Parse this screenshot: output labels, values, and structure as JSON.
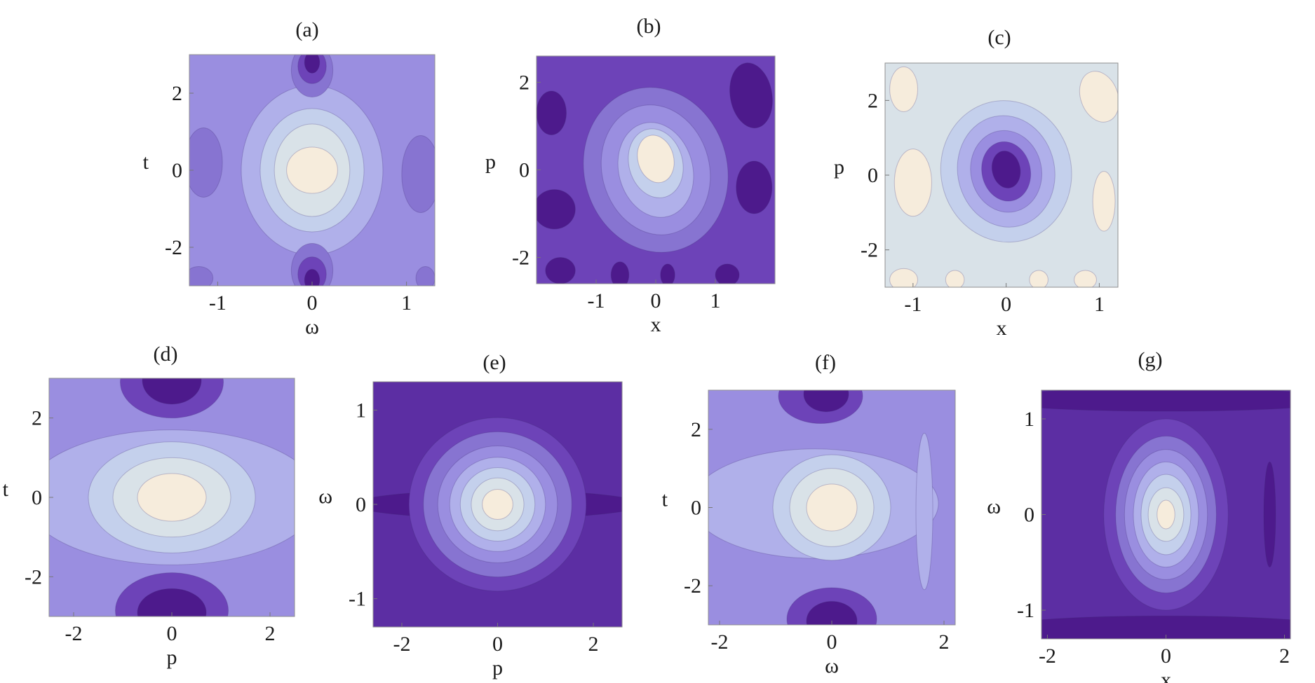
{
  "figure": {
    "palette": [
      "#4d1a8c",
      "#5c2ea3",
      "#6d43b8",
      "#8774d1",
      "#9a8ee0",
      "#b0b0ea",
      "#c4d0ec",
      "#d9e2e8",
      "#f6ecdc"
    ]
  },
  "chart_data": [
    {
      "type": "heatmap",
      "title": "(a)",
      "xlabel": "ω",
      "ylabel": "t",
      "xlim": [
        -1.3,
        1.3
      ],
      "ylim": [
        -3,
        3
      ],
      "x_ticks": [
        -1,
        0,
        1
      ],
      "y_ticks": [
        -2,
        0,
        2
      ],
      "x_tick_labels": [
        "-1",
        "0",
        "1"
      ],
      "y_tick_labels": [
        "-2",
        "0",
        "2"
      ],
      "plot": "contour",
      "description": "Bright central lobe at origin with dark lobes above and below along t axis"
    },
    {
      "type": "heatmap",
      "title": "(b)",
      "xlabel": "x",
      "ylabel": "p",
      "xlim": [
        -2,
        2
      ],
      "ylim": [
        -2.6,
        2.6
      ],
      "x_ticks": [
        -1,
        0,
        1
      ],
      "y_ticks": [
        -2,
        0,
        2
      ],
      "x_tick_labels": [
        "-1",
        "0",
        "1"
      ],
      "y_tick_labels": [
        "-2",
        "0",
        "2"
      ],
      "plot": "contour",
      "description": "Tilted bright ellipse at origin on dark background with dark lobes near edges"
    },
    {
      "type": "heatmap",
      "title": "(c)",
      "xlabel": "x",
      "ylabel": "p",
      "xlim": [
        -1.3,
        1.2
      ],
      "ylim": [
        -3,
        3
      ],
      "x_ticks": [
        -1,
        0,
        1
      ],
      "y_ticks": [
        -2,
        0,
        2
      ],
      "x_tick_labels": [
        "-1",
        "0",
        "1"
      ],
      "y_tick_labels": [
        "-2",
        "0",
        "2"
      ],
      "plot": "contour",
      "description": "Tilted dark ellipse at origin on light background with light blobs near edges"
    },
    {
      "type": "heatmap",
      "title": "(d)",
      "xlabel": "p",
      "ylabel": "t",
      "xlim": [
        -2.5,
        2.5
      ],
      "ylim": [
        -3,
        3
      ],
      "x_ticks": [
        -2,
        0,
        2
      ],
      "y_ticks": [
        -2,
        0,
        2
      ],
      "x_tick_labels": [
        "-2",
        "0",
        "2"
      ],
      "y_tick_labels": [
        "-2",
        "0",
        "2"
      ],
      "plot": "contour",
      "description": "Bright central lobe with dark lobes at top and bottom"
    },
    {
      "type": "heatmap",
      "title": "(e)",
      "xlabel": "p",
      "ylabel": "ω",
      "xlim": [
        -2.6,
        2.6
      ],
      "ylim": [
        -1.3,
        1.3
      ],
      "x_ticks": [
        -2,
        0,
        2
      ],
      "y_ticks": [
        -1,
        0,
        1
      ],
      "x_tick_labels": [
        "-2",
        "0",
        "2"
      ],
      "y_tick_labels": [
        "-1",
        "0",
        "1"
      ],
      "plot": "contour",
      "description": "Concentric bright circular rings at origin on dark background"
    },
    {
      "type": "heatmap",
      "title": "(f)",
      "xlabel": "ω",
      "ylabel": "t",
      "xlim": [
        -2.2,
        2.2
      ],
      "ylim": [
        -3,
        3
      ],
      "x_ticks": [
        -2,
        0,
        2
      ],
      "y_ticks": [
        -2,
        0,
        2
      ],
      "x_tick_labels": [
        "-2",
        "0",
        "2"
      ],
      "y_tick_labels": [
        "-2",
        "0",
        "2"
      ],
      "plot": "contour",
      "description": "Bright central lobe with dark lobes at top and bottom and light vertical bands on right"
    },
    {
      "type": "heatmap",
      "title": "(g)",
      "xlabel": "x",
      "ylabel": "ω",
      "xlim": [
        -2.1,
        2.1
      ],
      "ylim": [
        -1.3,
        1.3
      ],
      "x_ticks": [
        -2,
        0,
        2
      ],
      "y_ticks": [
        -1,
        0,
        1
      ],
      "x_tick_labels": [
        "-2",
        "0",
        "2"
      ],
      "y_tick_labels": [
        "-1",
        "0",
        "1"
      ],
      "plot": "contour",
      "description": "Vertically elongated concentric bright ellipses at origin on dark background"
    }
  ]
}
